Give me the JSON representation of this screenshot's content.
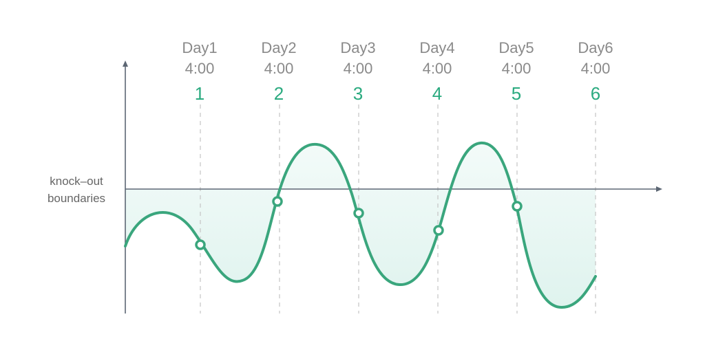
{
  "boundary_label": [
    "knock–out",
    "boundaries"
  ],
  "days": [
    {
      "day": "Day1",
      "time": "4:00",
      "number": "1"
    },
    {
      "day": "Day2",
      "time": "4:00",
      "number": "2"
    },
    {
      "day": "Day3",
      "time": "4:00",
      "number": "3"
    },
    {
      "day": "Day4",
      "time": "4:00",
      "number": "4"
    },
    {
      "day": "Day5",
      "time": "4:00",
      "number": "5"
    },
    {
      "day": "Day6",
      "time": "4:00",
      "number": "6"
    }
  ],
  "colors": {
    "curve": "#3aa67d",
    "fill": "#e6f6f2",
    "axis": "#5c6673",
    "guide": "#c8c8c8",
    "number": "#2aaa7f",
    "label": "#8a8a8a"
  }
}
